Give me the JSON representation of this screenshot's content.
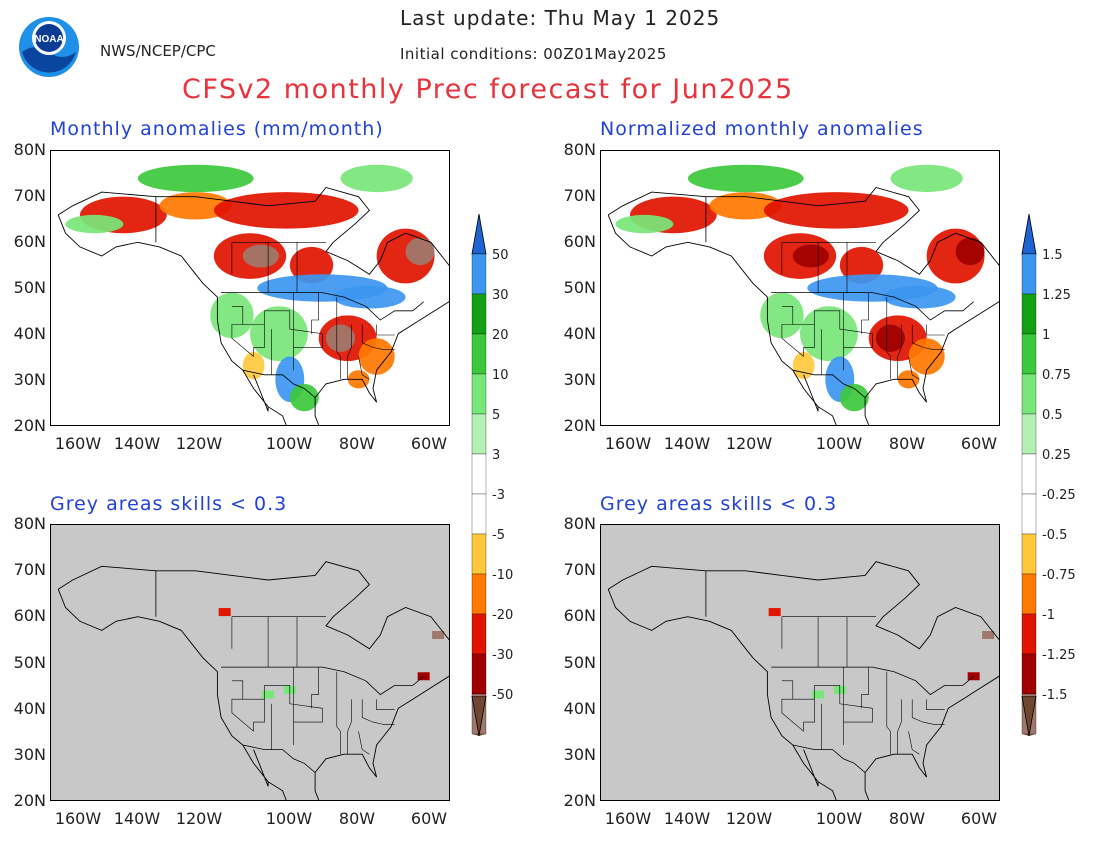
{
  "header": {
    "last_update": "Last update: Thu May 1 2025",
    "initial_conditions": "Initial conditions: 00Z01May2025",
    "agency": "NWS/NCEP/CPC",
    "title": "CFSv2 monthly Prec forecast for Jun2025",
    "logo_text": "NOAA"
  },
  "panels": {
    "top_left_title": "Monthly anomalies (mm/month)",
    "top_right_title": "Normalized monthly anomalies",
    "bottom_left_title": "Grey areas skills < 0.3",
    "bottom_right_title": "Grey areas skills < 0.3"
  },
  "axes": {
    "lat_labels": [
      "80N",
      "70N",
      "60N",
      "50N",
      "40N",
      "30N",
      "20N"
    ],
    "lon_labels": [
      "160W",
      "140W",
      "120W",
      "100W",
      "80W",
      "60W"
    ]
  },
  "colorbar_left": {
    "labels": [
      "50",
      "30",
      "20",
      "10",
      "5",
      "3",
      "-3",
      "-5",
      "-10",
      "-20",
      "-30",
      "-50"
    ]
  },
  "colorbar_right": {
    "labels": [
      "1.5",
      "1.25",
      "1",
      "0.75",
      "0.5",
      "0.25",
      "-0.25",
      "-0.5",
      "-0.75",
      "-1",
      "-1.25",
      "-1.5"
    ]
  },
  "colors": {
    "wet": [
      "#b4f0b4",
      "#78e678",
      "#3cc83c",
      "#14a014",
      "#3c96f0",
      "#1e64d2"
    ],
    "dry": [
      "#ffc83c",
      "#ff7800",
      "#e11400",
      "#a00000",
      "#a0786e",
      "#6e4632"
    ],
    "skill_mask": "#c8c8c8",
    "title_red": "#e8323c",
    "subtitle_blue": "#2142d8"
  }
}
